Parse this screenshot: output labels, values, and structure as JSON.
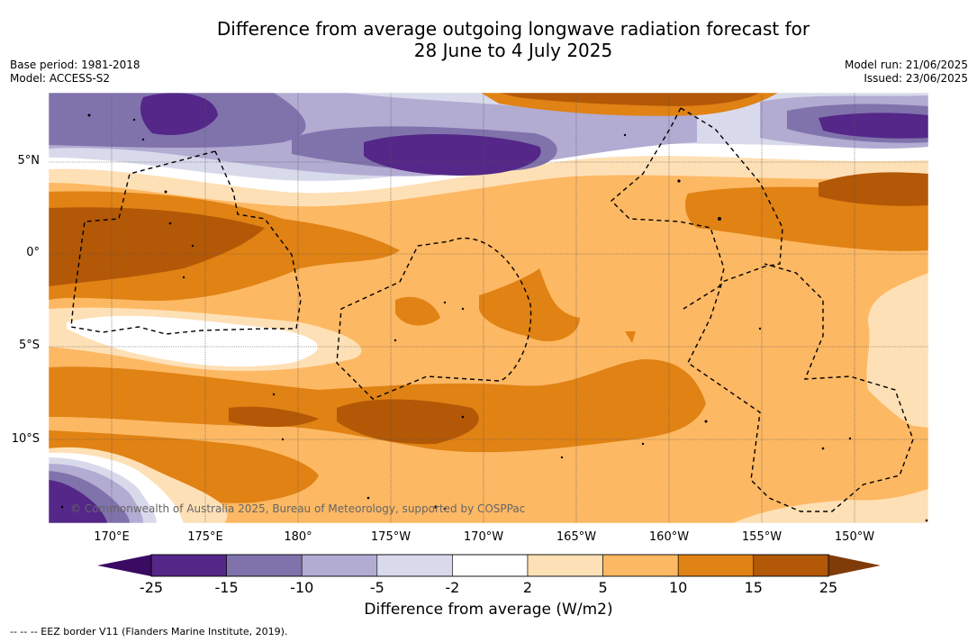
{
  "title_line1": "Difference from average outgoing longwave radiation forecast for",
  "title_line2": "28 June to 4 July 2025",
  "base_period": "Base period: 1981-2018",
  "model": "Model: ACCESS-S2",
  "model_run": "Model run: 21/06/2025",
  "issued": "Issued: 23/06/2025",
  "lat_labels": [
    "5°N",
    "0°",
    "5°S",
    "10°S"
  ],
  "lon_labels": [
    "170°E",
    "175°E",
    "180°",
    "175°W",
    "170°W",
    "165°W",
    "160°W",
    "155°W",
    "150°W"
  ],
  "copyright": "© Commonwealth of Australia 2025, Bureau of Meteorology, supported by COSPPac",
  "colorbar": {
    "labels": [
      "-25",
      "-15",
      "-10",
      "-5",
      "-2",
      "2",
      "5",
      "10",
      "15",
      "25"
    ],
    "colors": [
      "#3b0a63",
      "#542788",
      "#8073ac",
      "#b2abd2",
      "#d8daeb",
      "#ffffff",
      "#fee0b6",
      "#fdb863",
      "#e08214",
      "#b35806",
      "#7f3b08"
    ],
    "title": "Difference from average (W/m2)"
  },
  "footer": "--  --  -- EEZ border V11 (Flanders Marine Institute, 2019)."
}
